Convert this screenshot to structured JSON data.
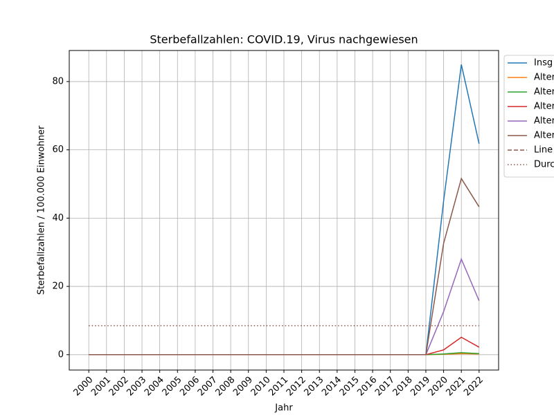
{
  "chart_data": {
    "type": "line",
    "title": "Sterbefallzahlen: COVID.19, Virus nachgewiesen",
    "xlabel": "Jahr",
    "ylabel": "Sterbefallzahlen / 100.000 Einwohner",
    "x": [
      2000,
      2001,
      2002,
      2003,
      2004,
      2005,
      2006,
      2007,
      2008,
      2009,
      2010,
      2011,
      2012,
      2013,
      2014,
      2015,
      2016,
      2017,
      2018,
      2019,
      2020,
      2021,
      2022
    ],
    "xlim": [
      1998.9,
      2023.1
    ],
    "xticks": [
      2000,
      2001,
      2002,
      2003,
      2004,
      2005,
      2006,
      2007,
      2008,
      2009,
      2010,
      2011,
      2012,
      2013,
      2014,
      2015,
      2016,
      2017,
      2018,
      2019,
      2020,
      2021,
      2022
    ],
    "ylim": [
      -4.5,
      89.1
    ],
    "yticks": [
      0,
      20,
      40,
      60,
      80
    ],
    "grid": true,
    "legend": "outside-right",
    "series": [
      {
        "name": "Insg",
        "color": "#1f77b4",
        "style": "solid",
        "values": [
          0,
          0,
          0,
          0,
          0,
          0,
          0,
          0,
          0,
          0,
          0,
          0,
          0,
          0,
          0,
          0,
          0,
          0,
          0,
          0,
          45,
          85,
          61.8
        ]
      },
      {
        "name": "Alter",
        "color": "#ff7f0e",
        "style": "solid",
        "values": [
          0,
          0,
          0,
          0,
          0,
          0,
          0,
          0,
          0,
          0,
          0,
          0,
          0,
          0,
          0,
          0,
          0,
          0,
          0,
          0,
          0.1,
          0.3,
          0.2
        ]
      },
      {
        "name": "Alter",
        "color": "#2ca02c",
        "style": "solid",
        "values": [
          0,
          0,
          0,
          0,
          0,
          0,
          0,
          0,
          0,
          0,
          0,
          0,
          0,
          0,
          0,
          0,
          0,
          0,
          0,
          0,
          0.2,
          0.6,
          0.3
        ]
      },
      {
        "name": "Alter",
        "color": "#d62728",
        "style": "solid",
        "values": [
          0,
          0,
          0,
          0,
          0,
          0,
          0,
          0,
          0,
          0,
          0,
          0,
          0,
          0,
          0,
          0,
          0,
          0,
          0,
          0,
          1.4,
          5.1,
          2.2
        ]
      },
      {
        "name": "Alter",
        "color": "#9467bd",
        "style": "solid",
        "values": [
          0,
          0,
          0,
          0,
          0,
          0,
          0,
          0,
          0,
          0,
          0,
          0,
          0,
          0,
          0,
          0,
          0,
          0,
          0,
          0,
          12.6,
          28,
          15.8
        ]
      },
      {
        "name": "Alter",
        "color": "#8c564b",
        "style": "solid",
        "values": [
          0,
          0,
          0,
          0,
          0,
          0,
          0,
          0,
          0,
          0,
          0,
          0,
          0,
          0,
          0,
          0,
          0,
          0,
          0,
          0,
          32.6,
          51.6,
          43.3
        ]
      },
      {
        "name": "Line",
        "color": "#8c564b",
        "style": "dashed",
        "values": [
          null,
          null,
          null,
          null,
          null,
          null,
          null,
          null,
          null,
          null,
          null,
          null,
          null,
          null,
          null,
          null,
          null,
          null,
          null,
          null,
          null,
          null,
          null
        ]
      },
      {
        "name": "Durc",
        "color": "#8c564b",
        "style": "dotted",
        "values": [
          8.5,
          8.5,
          8.5,
          8.5,
          8.5,
          8.5,
          8.5,
          8.5,
          8.5,
          8.5,
          8.5,
          8.5,
          8.5,
          8.5,
          8.5,
          8.5,
          8.5,
          8.5,
          8.5,
          8.5,
          8.5,
          8.5,
          8.5
        ]
      }
    ]
  }
}
